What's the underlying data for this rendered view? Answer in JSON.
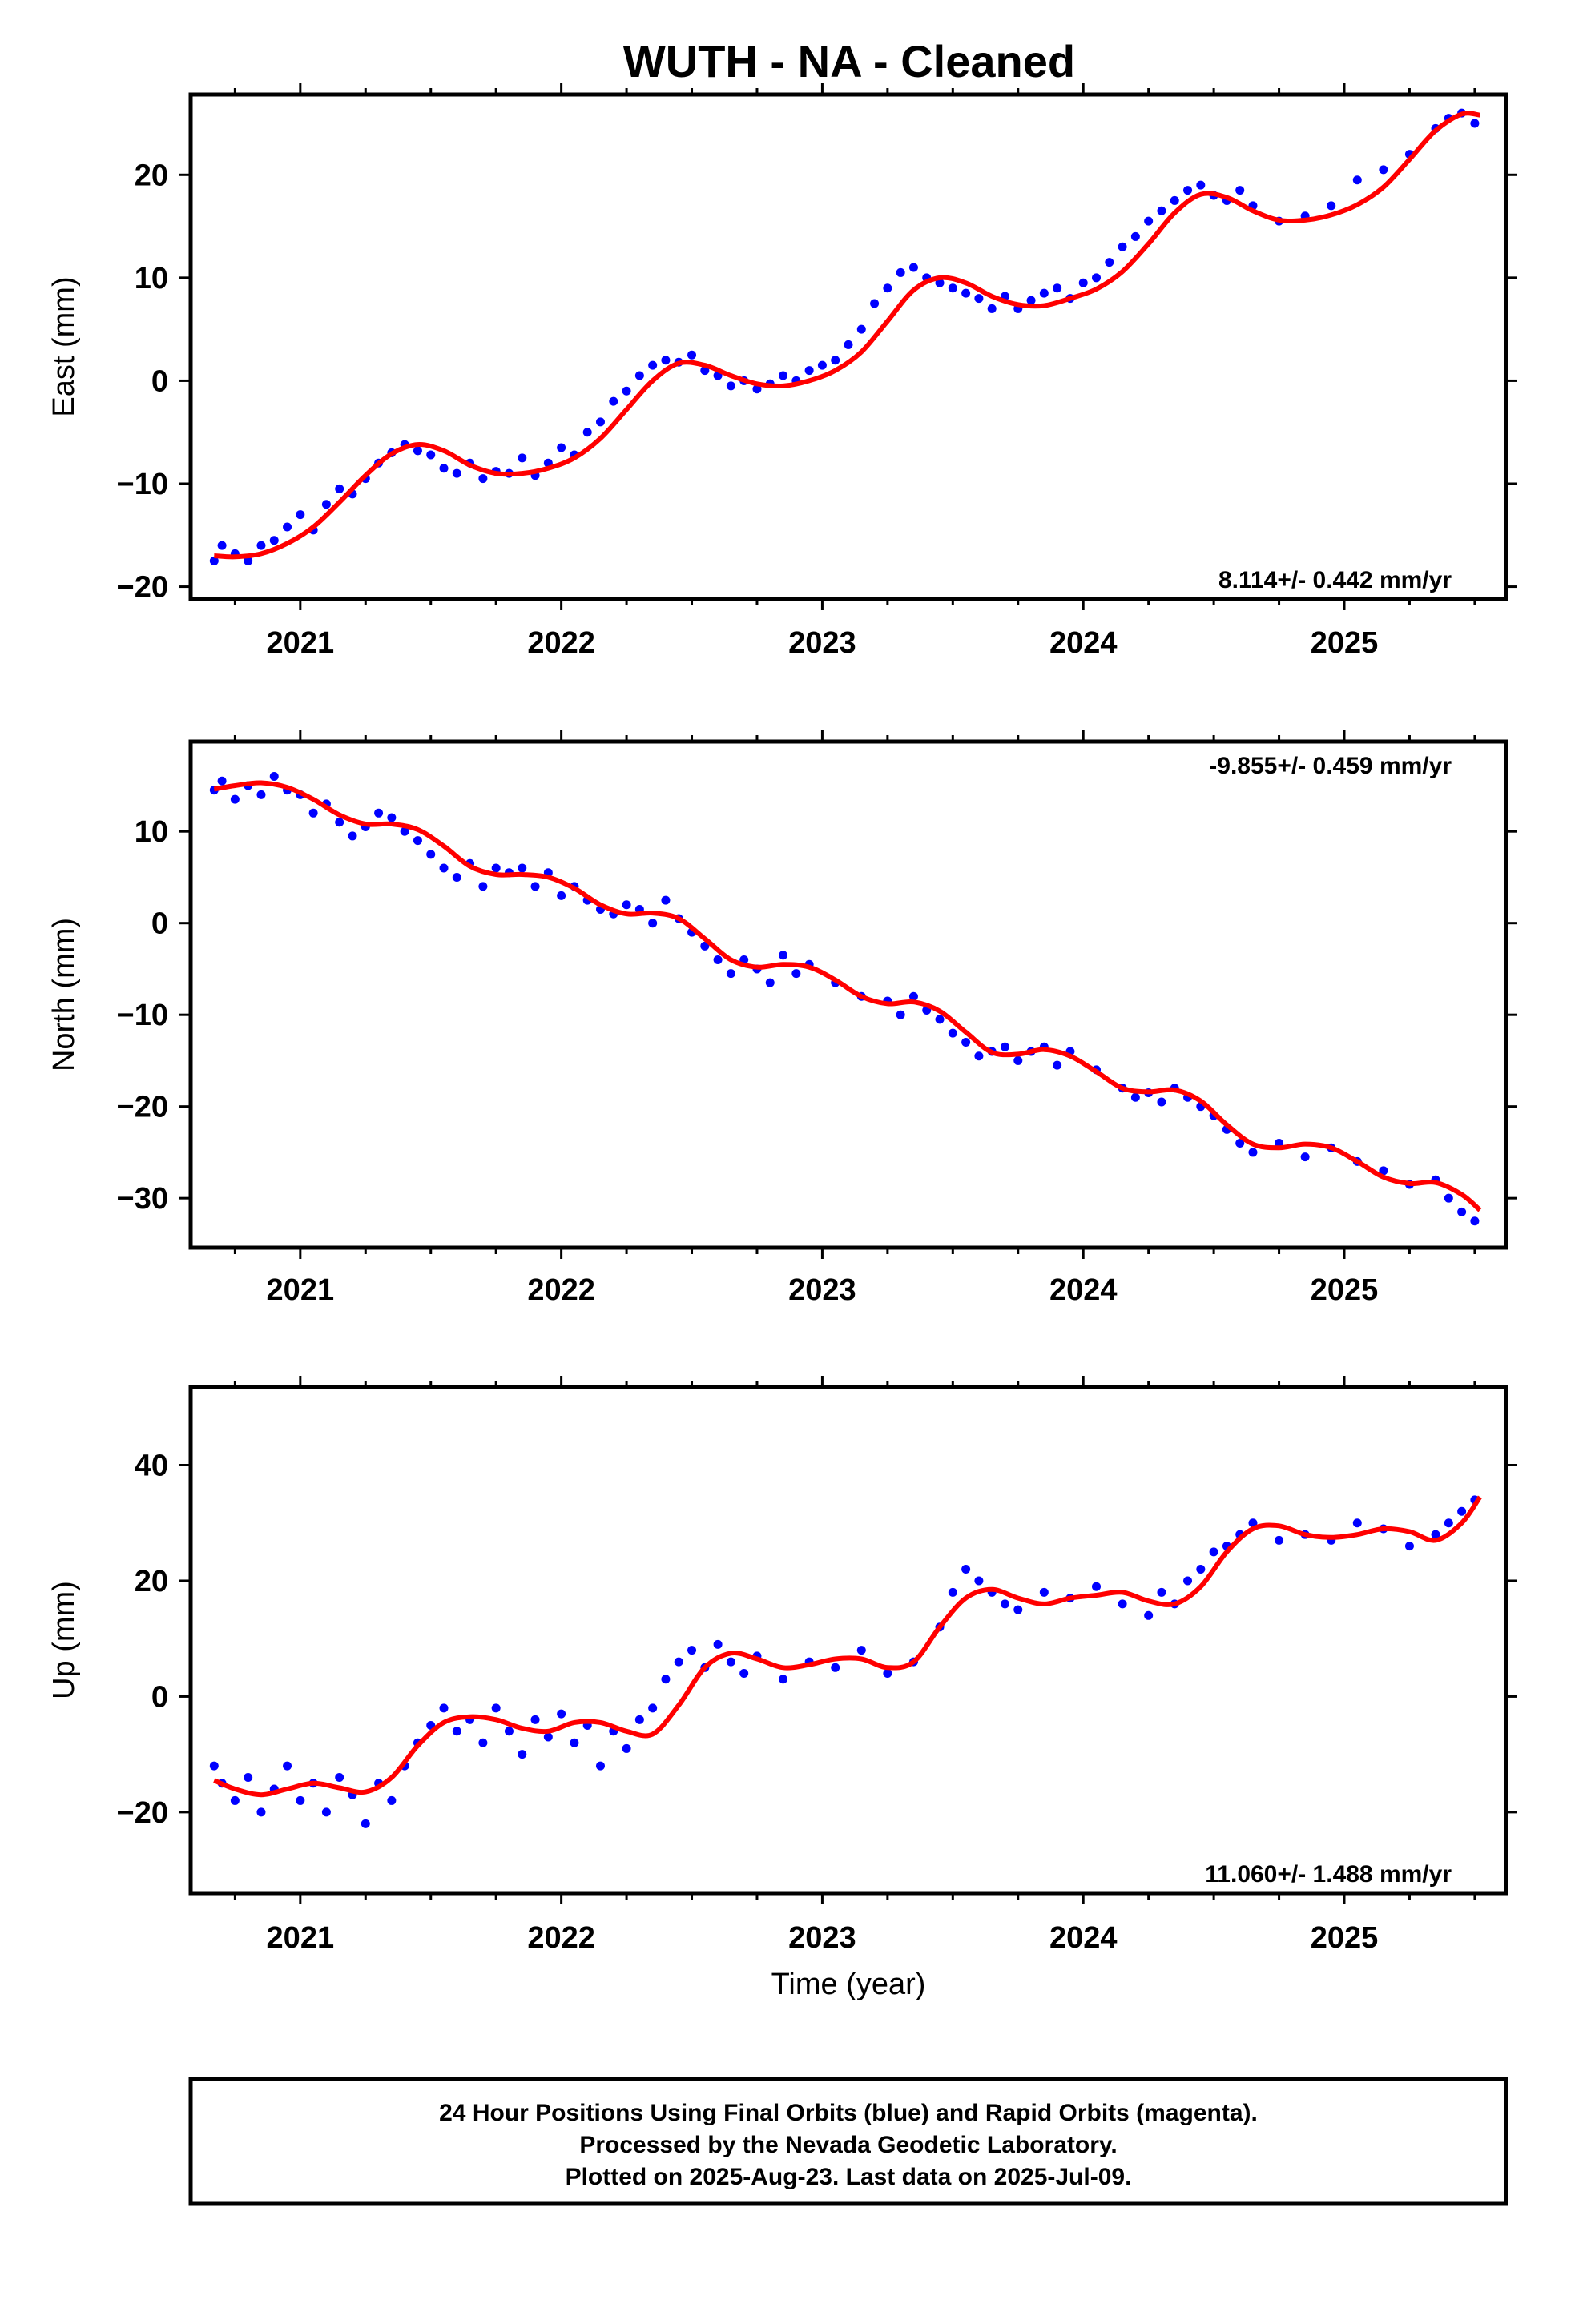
{
  "title": "WUTH  - NA - Cleaned",
  "footer": {
    "line1": "24 Hour Positions Using Final Orbits (blue) and Rapid Orbits (magenta).",
    "line2": "Processed by the Nevada Geodetic Laboratory.",
    "line3": "Plotted on 2025-Aug-23. Last data on 2025-Jul-09."
  },
  "colors": {
    "points": "#0000ff",
    "fit": "#ff0000",
    "frame": "#000000"
  },
  "chart_data": [
    {
      "type": "scatter",
      "ylabel": "East (mm)",
      "xlabel": "",
      "rate": "8.114+/- 0.442 mm/yr",
      "xlim": [
        2020.58,
        2025.62
      ],
      "ylim": [
        -21.2,
        27.8
      ],
      "xticks": [
        2021,
        2022,
        2023,
        2024,
        2025
      ],
      "yticks": [
        -20,
        -10,
        0,
        10,
        20
      ],
      "rate_position": "bottom-right",
      "grid": false,
      "series": [
        {
          "type": "scatter",
          "x": [
            2020.67,
            2020.7,
            2020.75,
            2020.8,
            2020.85,
            2020.9,
            2020.95,
            2021.0,
            2021.05,
            2021.1,
            2021.15,
            2021.2,
            2021.25,
            2021.3,
            2021.35,
            2021.4,
            2021.45,
            2021.5,
            2021.55,
            2021.6,
            2021.65,
            2021.7,
            2021.75,
            2021.8,
            2021.85,
            2021.9,
            2021.95,
            2022.0,
            2022.05,
            2022.1,
            2022.15,
            2022.2,
            2022.25,
            2022.3,
            2022.35,
            2022.4,
            2022.45,
            2022.5,
            2022.55,
            2022.6,
            2022.65,
            2022.7,
            2022.75,
            2022.8,
            2022.85,
            2022.9,
            2022.95,
            2023.0,
            2023.05,
            2023.1,
            2023.15,
            2023.2,
            2023.25,
            2023.3,
            2023.35,
            2023.4,
            2023.45,
            2023.5,
            2023.55,
            2023.6,
            2023.65,
            2023.7,
            2023.75,
            2023.8,
            2023.85,
            2023.9,
            2023.95,
            2024.0,
            2024.05,
            2024.1,
            2024.15,
            2024.2,
            2024.25,
            2024.3,
            2024.35,
            2024.4,
            2024.45,
            2024.5,
            2024.55,
            2024.6,
            2024.65,
            2024.75,
            2024.85,
            2024.95,
            2025.05,
            2025.15,
            2025.25,
            2025.35,
            2025.4,
            2025.45,
            2025.5
          ],
          "y": [
            -17.5,
            -16.0,
            -16.8,
            -17.5,
            -16.0,
            -15.5,
            -14.2,
            -13.0,
            -14.5,
            -12.0,
            -10.5,
            -11.0,
            -9.5,
            -8.0,
            -7.0,
            -6.2,
            -6.8,
            -7.2,
            -8.5,
            -9.0,
            -8.0,
            -9.5,
            -8.8,
            -9.0,
            -7.5,
            -9.2,
            -8.0,
            -6.5,
            -7.2,
            -5.0,
            -4.0,
            -2.0,
            -1.0,
            0.5,
            1.5,
            2.0,
            1.8,
            2.5,
            1.0,
            0.5,
            -0.5,
            0.0,
            -0.8,
            -0.3,
            0.5,
            0.0,
            1.0,
            1.5,
            2.0,
            3.5,
            5.0,
            7.5,
            9.0,
            10.5,
            11.0,
            10.0,
            9.5,
            9.0,
            8.5,
            8.0,
            7.0,
            8.2,
            7.0,
            7.8,
            8.5,
            9.0,
            8.0,
            9.5,
            10.0,
            11.5,
            13.0,
            14.0,
            15.5,
            16.5,
            17.5,
            18.5,
            19.0,
            18.0,
            17.5,
            18.5,
            17.0,
            15.5,
            16.0,
            17.0,
            19.5,
            20.5,
            22.0,
            24.5,
            25.5,
            26.0,
            25.0
          ]
        },
        {
          "type": "line",
          "x": [
            2020.67,
            2020.75,
            2020.85,
            2020.95,
            2021.05,
            2021.15,
            2021.25,
            2021.35,
            2021.45,
            2021.55,
            2021.65,
            2021.75,
            2021.85,
            2021.95,
            2022.05,
            2022.15,
            2022.25,
            2022.35,
            2022.45,
            2022.55,
            2022.65,
            2022.75,
            2022.85,
            2022.95,
            2023.05,
            2023.15,
            2023.25,
            2023.35,
            2023.45,
            2023.55,
            2023.65,
            2023.75,
            2023.85,
            2023.95,
            2024.05,
            2024.15,
            2024.25,
            2024.35,
            2024.45,
            2024.55,
            2024.65,
            2024.75,
            2024.85,
            2024.95,
            2025.05,
            2025.15,
            2025.25,
            2025.35,
            2025.45,
            2025.52
          ],
          "y": [
            -17.0,
            -17.1,
            -16.8,
            -15.8,
            -14.2,
            -11.8,
            -9.2,
            -7.1,
            -6.2,
            -6.8,
            -8.2,
            -9.0,
            -9.0,
            -8.5,
            -7.5,
            -5.6,
            -2.8,
            0.0,
            1.7,
            1.5,
            0.5,
            -0.3,
            -0.5,
            0.0,
            1.0,
            2.8,
            5.8,
            8.8,
            10.0,
            9.5,
            8.2,
            7.4,
            7.3,
            8.0,
            8.9,
            10.6,
            13.3,
            16.3,
            18.1,
            17.8,
            16.5,
            15.6,
            15.6,
            16.1,
            17.1,
            18.8,
            21.5,
            24.3,
            25.9,
            25.8
          ]
        }
      ]
    },
    {
      "type": "scatter",
      "ylabel": "North (mm)",
      "xlabel": "",
      "rate": "-9.855+/- 0.459 mm/yr",
      "xlim": [
        2020.58,
        2025.62
      ],
      "ylim": [
        -35.4,
        19.8
      ],
      "xticks": [
        2021,
        2022,
        2023,
        2024,
        2025
      ],
      "yticks": [
        -30,
        -20,
        -10,
        0,
        10
      ],
      "rate_position": "top-right",
      "grid": false,
      "series": [
        {
          "type": "scatter",
          "x": [
            2020.67,
            2020.7,
            2020.75,
            2020.8,
            2020.85,
            2020.9,
            2020.95,
            2021.0,
            2021.05,
            2021.1,
            2021.15,
            2021.2,
            2021.25,
            2021.3,
            2021.35,
            2021.4,
            2021.45,
            2021.5,
            2021.55,
            2021.6,
            2021.65,
            2021.7,
            2021.75,
            2021.8,
            2021.85,
            2021.9,
            2021.95,
            2022.0,
            2022.05,
            2022.1,
            2022.15,
            2022.2,
            2022.25,
            2022.3,
            2022.35,
            2022.4,
            2022.45,
            2022.5,
            2022.55,
            2022.6,
            2022.65,
            2022.7,
            2022.75,
            2022.8,
            2022.85,
            2022.9,
            2022.95,
            2023.05,
            2023.15,
            2023.25,
            2023.3,
            2023.35,
            2023.4,
            2023.45,
            2023.5,
            2023.55,
            2023.6,
            2023.65,
            2023.7,
            2023.75,
            2023.8,
            2023.85,
            2023.9,
            2023.95,
            2024.05,
            2024.15,
            2024.2,
            2024.25,
            2024.3,
            2024.35,
            2024.4,
            2024.45,
            2024.5,
            2024.55,
            2024.6,
            2024.65,
            2024.75,
            2024.85,
            2024.95,
            2025.05,
            2025.15,
            2025.25,
            2025.35,
            2025.4,
            2025.45,
            2025.5
          ],
          "y": [
            14.5,
            15.5,
            13.5,
            15.0,
            14.0,
            16.0,
            14.5,
            14.0,
            12.0,
            13.0,
            11.0,
            9.5,
            10.5,
            12.0,
            11.5,
            10.0,
            9.0,
            7.5,
            6.0,
            5.0,
            6.5,
            4.0,
            6.0,
            5.5,
            6.0,
            4.0,
            5.5,
            3.0,
            4.0,
            2.5,
            1.5,
            1.0,
            2.0,
            1.5,
            0.0,
            2.5,
            0.5,
            -1.0,
            -2.5,
            -4.0,
            -5.5,
            -4.0,
            -5.0,
            -6.5,
            -3.5,
            -5.5,
            -4.5,
            -6.5,
            -8.0,
            -8.5,
            -10.0,
            -8.0,
            -9.5,
            -10.5,
            -12.0,
            -13.0,
            -14.5,
            -14.0,
            -13.5,
            -15.0,
            -14.0,
            -13.5,
            -15.5,
            -14.0,
            -16.0,
            -18.0,
            -19.0,
            -18.5,
            -19.5,
            -18.0,
            -19.0,
            -20.0,
            -21.0,
            -22.5,
            -24.0,
            -25.0,
            -24.0,
            -25.5,
            -24.5,
            -26.0,
            -27.0,
            -28.5,
            -28.0,
            -30.0,
            -31.5,
            -32.5
          ]
        },
        {
          "type": "line",
          "x": [
            2020.67,
            2020.75,
            2020.85,
            2020.95,
            2021.05,
            2021.15,
            2021.25,
            2021.35,
            2021.45,
            2021.55,
            2021.65,
            2021.75,
            2021.85,
            2021.95,
            2022.05,
            2022.15,
            2022.25,
            2022.35,
            2022.45,
            2022.55,
            2022.65,
            2022.75,
            2022.85,
            2022.95,
            2023.05,
            2023.15,
            2023.25,
            2023.35,
            2023.45,
            2023.55,
            2023.65,
            2023.75,
            2023.85,
            2023.95,
            2024.05,
            2024.15,
            2024.25,
            2024.35,
            2024.45,
            2024.55,
            2024.65,
            2024.75,
            2024.85,
            2024.95,
            2025.05,
            2025.15,
            2025.25,
            2025.35,
            2025.45,
            2025.52
          ],
          "y": [
            14.6,
            15.0,
            15.3,
            14.8,
            13.5,
            11.8,
            10.8,
            10.8,
            10.2,
            8.4,
            6.2,
            5.3,
            5.3,
            5.0,
            3.8,
            2.0,
            1.0,
            1.1,
            0.5,
            -1.7,
            -4.0,
            -4.8,
            -4.5,
            -4.8,
            -6.2,
            -8.0,
            -8.8,
            -8.6,
            -9.6,
            -11.9,
            -14.1,
            -14.3,
            -13.8,
            -14.5,
            -16.2,
            -18.0,
            -18.4,
            -18.2,
            -19.4,
            -22.0,
            -24.1,
            -24.5,
            -24.1,
            -24.5,
            -26.0,
            -27.7,
            -28.4,
            -28.3,
            -29.6,
            -31.3
          ]
        }
      ]
    },
    {
      "type": "scatter",
      "ylabel": "Up (mm)",
      "xlabel": "Time (year)",
      "rate": "11.060+/- 1.488 mm/yr",
      "xlim": [
        2020.58,
        2025.62
      ],
      "ylim": [
        -34.0,
        53.5
      ],
      "xticks": [
        2021,
        2022,
        2023,
        2024,
        2025
      ],
      "yticks": [
        -20,
        0,
        20,
        40
      ],
      "rate_position": "bottom-right",
      "grid": false,
      "series": [
        {
          "type": "scatter",
          "x": [
            2020.67,
            2020.7,
            2020.75,
            2020.8,
            2020.85,
            2020.9,
            2020.95,
            2021.0,
            2021.05,
            2021.1,
            2021.15,
            2021.2,
            2021.25,
            2021.3,
            2021.35,
            2021.4,
            2021.45,
            2021.5,
            2021.55,
            2021.6,
            2021.65,
            2021.7,
            2021.75,
            2021.8,
            2021.85,
            2021.9,
            2021.95,
            2022.0,
            2022.05,
            2022.1,
            2022.15,
            2022.2,
            2022.25,
            2022.3,
            2022.35,
            2022.4,
            2022.45,
            2022.5,
            2022.55,
            2022.6,
            2022.65,
            2022.7,
            2022.75,
            2022.85,
            2022.95,
            2023.05,
            2023.15,
            2023.25,
            2023.35,
            2023.45,
            2023.5,
            2023.55,
            2023.6,
            2023.65,
            2023.7,
            2023.75,
            2023.85,
            2023.95,
            2024.05,
            2024.15,
            2024.25,
            2024.3,
            2024.35,
            2024.4,
            2024.45,
            2024.5,
            2024.55,
            2024.6,
            2024.65,
            2024.75,
            2024.85,
            2024.95,
            2025.05,
            2025.15,
            2025.25,
            2025.35,
            2025.4,
            2025.45,
            2025.5
          ],
          "y": [
            -12.0,
            -15.0,
            -18.0,
            -14.0,
            -20.0,
            -16.0,
            -12.0,
            -18.0,
            -15.0,
            -20.0,
            -14.0,
            -17.0,
            -22.0,
            -15.0,
            -18.0,
            -12.0,
            -8.0,
            -5.0,
            -2.0,
            -6.0,
            -4.0,
            -8.0,
            -2.0,
            -6.0,
            -10.0,
            -4.0,
            -7.0,
            -3.0,
            -8.0,
            -5.0,
            -12.0,
            -6.0,
            -9.0,
            -4.0,
            -2.0,
            3.0,
            6.0,
            8.0,
            5.0,
            9.0,
            6.0,
            4.0,
            7.0,
            3.0,
            6.0,
            5.0,
            8.0,
            4.0,
            6.0,
            12.0,
            18.0,
            22.0,
            20.0,
            18.0,
            16.0,
            15.0,
            18.0,
            17.0,
            19.0,
            16.0,
            14.0,
            18.0,
            16.0,
            20.0,
            22.0,
            25.0,
            26.0,
            28.0,
            30.0,
            27.0,
            28.0,
            27.0,
            30.0,
            29.0,
            26.0,
            28.0,
            30.0,
            32.0,
            34.0
          ]
        },
        {
          "type": "line",
          "x": [
            2020.67,
            2020.75,
            2020.85,
            2020.95,
            2021.05,
            2021.15,
            2021.25,
            2021.35,
            2021.45,
            2021.55,
            2021.65,
            2021.75,
            2021.85,
            2021.95,
            2022.05,
            2022.15,
            2022.25,
            2022.35,
            2022.45,
            2022.55,
            2022.65,
            2022.75,
            2022.85,
            2022.95,
            2023.05,
            2023.15,
            2023.25,
            2023.35,
            2023.45,
            2023.55,
            2023.65,
            2023.75,
            2023.85,
            2023.95,
            2024.05,
            2024.15,
            2024.25,
            2024.35,
            2024.45,
            2024.55,
            2024.65,
            2024.75,
            2024.85,
            2024.95,
            2025.05,
            2025.15,
            2025.25,
            2025.35,
            2025.45,
            2025.52
          ],
          "y": [
            -14.5,
            -16.0,
            -17.0,
            -16.0,
            -15.0,
            -15.8,
            -16.5,
            -14.0,
            -8.5,
            -4.5,
            -3.5,
            -4.0,
            -5.5,
            -6.0,
            -4.5,
            -4.5,
            -6.0,
            -6.5,
            -1.5,
            5.0,
            7.5,
            6.5,
            5.0,
            5.5,
            6.5,
            6.5,
            5.0,
            6.0,
            12.0,
            17.0,
            18.5,
            17.0,
            16.0,
            17.0,
            17.5,
            18.0,
            16.5,
            16.0,
            19.0,
            25.0,
            29.0,
            29.5,
            28.0,
            27.5,
            28.0,
            29.0,
            28.5,
            27.0,
            30.0,
            34.5
          ]
        }
      ]
    }
  ]
}
